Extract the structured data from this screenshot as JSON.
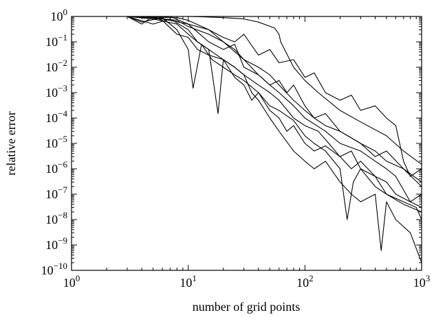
{
  "chart_data": {
    "type": "line",
    "xlabel": "number of grid points",
    "ylabel": "relative error",
    "xscale": "log",
    "yscale": "log",
    "xlim": [
      1,
      1000
    ],
    "ylim": [
      1e-10,
      1
    ],
    "grid": false,
    "x_ticks": [
      {
        "value": 1,
        "base": "10",
        "exp": "0"
      },
      {
        "value": 10,
        "base": "10",
        "exp": "1"
      },
      {
        "value": 100,
        "base": "10",
        "exp": "2"
      },
      {
        "value": 1000,
        "base": "10",
        "exp": "3"
      }
    ],
    "y_ticks": [
      {
        "value": 1,
        "base": "10",
        "exp": "0"
      },
      {
        "value": 0.1,
        "base": "10",
        "exp": "−1"
      },
      {
        "value": 0.01,
        "base": "10",
        "exp": "−2"
      },
      {
        "value": 0.001,
        "base": "10",
        "exp": "−3"
      },
      {
        "value": 0.0001,
        "base": "10",
        "exp": "−4"
      },
      {
        "value": 1e-05,
        "base": "10",
        "exp": "−5"
      },
      {
        "value": 1e-06,
        "base": "10",
        "exp": "−6"
      },
      {
        "value": 1e-07,
        "base": "10",
        "exp": "−7"
      },
      {
        "value": 1e-08,
        "base": "10",
        "exp": "−8"
      },
      {
        "value": 1e-09,
        "base": "10",
        "exp": "−9"
      },
      {
        "value": 1e-10,
        "base": "10",
        "exp": "−10"
      }
    ],
    "series": [
      {
        "x": [
          1,
          2,
          3,
          5,
          8,
          10,
          13,
          20,
          30,
          40,
          55,
          60,
          62,
          80,
          100,
          130,
          200,
          300,
          500,
          700,
          1000
        ],
        "y": [
          1,
          1,
          1,
          1,
          1,
          1,
          0.97,
          0.9,
          0.8,
          0.6,
          0.35,
          0.2,
          0.1,
          0.01,
          0.003,
          0.001,
          0.0002,
          7e-05,
          2e-05,
          5e-06,
          1.5e-06
        ]
      },
      {
        "x": [
          3,
          5,
          7,
          10,
          15,
          20,
          25,
          30,
          40,
          50,
          60,
          80,
          100,
          120,
          150,
          200,
          250,
          300,
          400,
          500,
          600,
          700,
          800,
          1000
        ],
        "y": [
          1,
          0.9,
          0.7,
          0.5,
          0.3,
          0.15,
          0.1,
          0.2,
          0.03,
          0.05,
          0.015,
          0.02,
          0.004,
          0.006,
          0.001,
          0.0005,
          0.0008,
          0.0002,
          0.0003,
          0.0001,
          5e-05,
          2e-06,
          5e-07,
          1e-06
        ]
      },
      {
        "x": [
          3,
          5,
          7,
          10,
          15,
          20,
          25,
          30,
          40,
          50,
          60,
          70,
          80,
          100,
          120,
          150,
          200,
          300,
          400,
          500,
          700,
          1000
        ],
        "y": [
          1,
          0.8,
          1,
          0.5,
          0.1,
          0.05,
          0.08,
          0.01,
          0.005,
          0.002,
          0.003,
          0.001,
          0.002,
          0.0003,
          0.0001,
          0.00015,
          3e-05,
          1e-05,
          3e-06,
          5e-06,
          1e-06,
          2e-07
        ]
      },
      {
        "x": [
          3,
          5,
          7,
          10,
          12,
          15,
          20,
          25,
          30,
          40,
          50,
          60,
          80,
          100,
          130,
          160,
          200,
          250,
          300,
          400,
          500,
          700,
          900,
          1000
        ],
        "y": [
          1,
          0.5,
          0.8,
          0.3,
          0.1,
          0.05,
          0.02,
          0.01,
          0.005,
          0.002,
          0.001,
          0.0005,
          0.0001,
          5e-05,
          3e-05,
          1e-05,
          3e-06,
          5e-06,
          1e-06,
          2e-07,
          1e-07,
          5e-08,
          3e-08,
          1e-08
        ]
      },
      {
        "x": [
          3,
          4,
          6,
          8,
          10,
          11,
          13,
          16,
          20,
          25,
          30,
          40,
          50,
          60,
          80,
          100,
          120,
          150,
          200,
          230,
          260,
          300,
          400,
          500,
          700,
          1000
        ],
        "y": [
          1,
          0.6,
          0.9,
          0.3,
          0.05,
          0.0015,
          0.08,
          0.02,
          0.01,
          0.005,
          0.003,
          0.001,
          0.0003,
          0.0002,
          8e-05,
          2e-05,
          1e-05,
          5e-06,
          1e-06,
          1e-08,
          3e-07,
          1e-06,
          5e-07,
          1e-07,
          4e-08,
          2e-08
        ]
      },
      {
        "x": [
          3,
          5,
          8,
          10,
          12,
          15,
          18,
          20,
          25,
          30,
          35,
          40,
          50,
          60,
          80,
          100,
          120,
          150,
          200,
          250,
          300,
          400,
          450,
          500,
          600,
          800,
          1000
        ],
        "y": [
          1,
          0.8,
          0.5,
          0.2,
          0.1,
          0.05,
          0.00015,
          0.02,
          0.01,
          0.005,
          0.001,
          0.0005,
          0.0001,
          3e-05,
          5e-06,
          2e-06,
          1e-06,
          2e-06,
          3e-07,
          1e-07,
          5e-08,
          1e-07,
          6e-10,
          5e-08,
          1e-08,
          3e-09,
          2e-10
        ]
      },
      {
        "x": [
          3,
          5,
          8,
          10,
          15,
          20,
          30,
          40,
          50,
          60,
          80,
          100,
          150,
          200,
          300,
          400,
          500,
          600,
          800,
          1000
        ],
        "y": [
          1,
          0.9,
          0.7,
          0.4,
          0.2,
          0.1,
          0.02,
          0.005,
          0.002,
          0.001,
          0.0003,
          0.0001,
          3e-05,
          1e-05,
          5e-06,
          2e-06,
          1e-06,
          5e-07,
          5e-08,
          1e-07
        ]
      },
      {
        "x": [
          3,
          4,
          5,
          6,
          8,
          10,
          12,
          15,
          20,
          25,
          30,
          35,
          40,
          50,
          60,
          70,
          80,
          100,
          120,
          150,
          200,
          250,
          300,
          400,
          500,
          600,
          800,
          1000
        ],
        "y": [
          1,
          0.5,
          1,
          0.7,
          0.2,
          0.15,
          0.05,
          0.03,
          0.02,
          0.004,
          0.002,
          0.0005,
          0.001,
          0.0002,
          0.0001,
          3e-05,
          5e-05,
          1e-05,
          5e-06,
          8e-06,
          3e-06,
          1e-06,
          2e-06,
          5e-07,
          3e-07,
          1e-07,
          5e-08,
          3e-08
        ]
      },
      {
        "x": [
          3,
          5,
          8,
          10,
          15,
          20,
          25,
          30,
          40,
          50,
          60,
          80,
          100,
          120,
          150,
          200,
          300,
          400,
          500,
          700,
          1000
        ],
        "y": [
          1,
          0.95,
          0.9,
          0.7,
          0.3,
          0.1,
          0.05,
          0.02,
          0.01,
          0.005,
          0.002,
          0.0005,
          0.0002,
          0.0001,
          5e-05,
          3e-05,
          1e-05,
          5e-06,
          2e-06,
          1e-06,
          3e-07
        ]
      }
    ]
  }
}
